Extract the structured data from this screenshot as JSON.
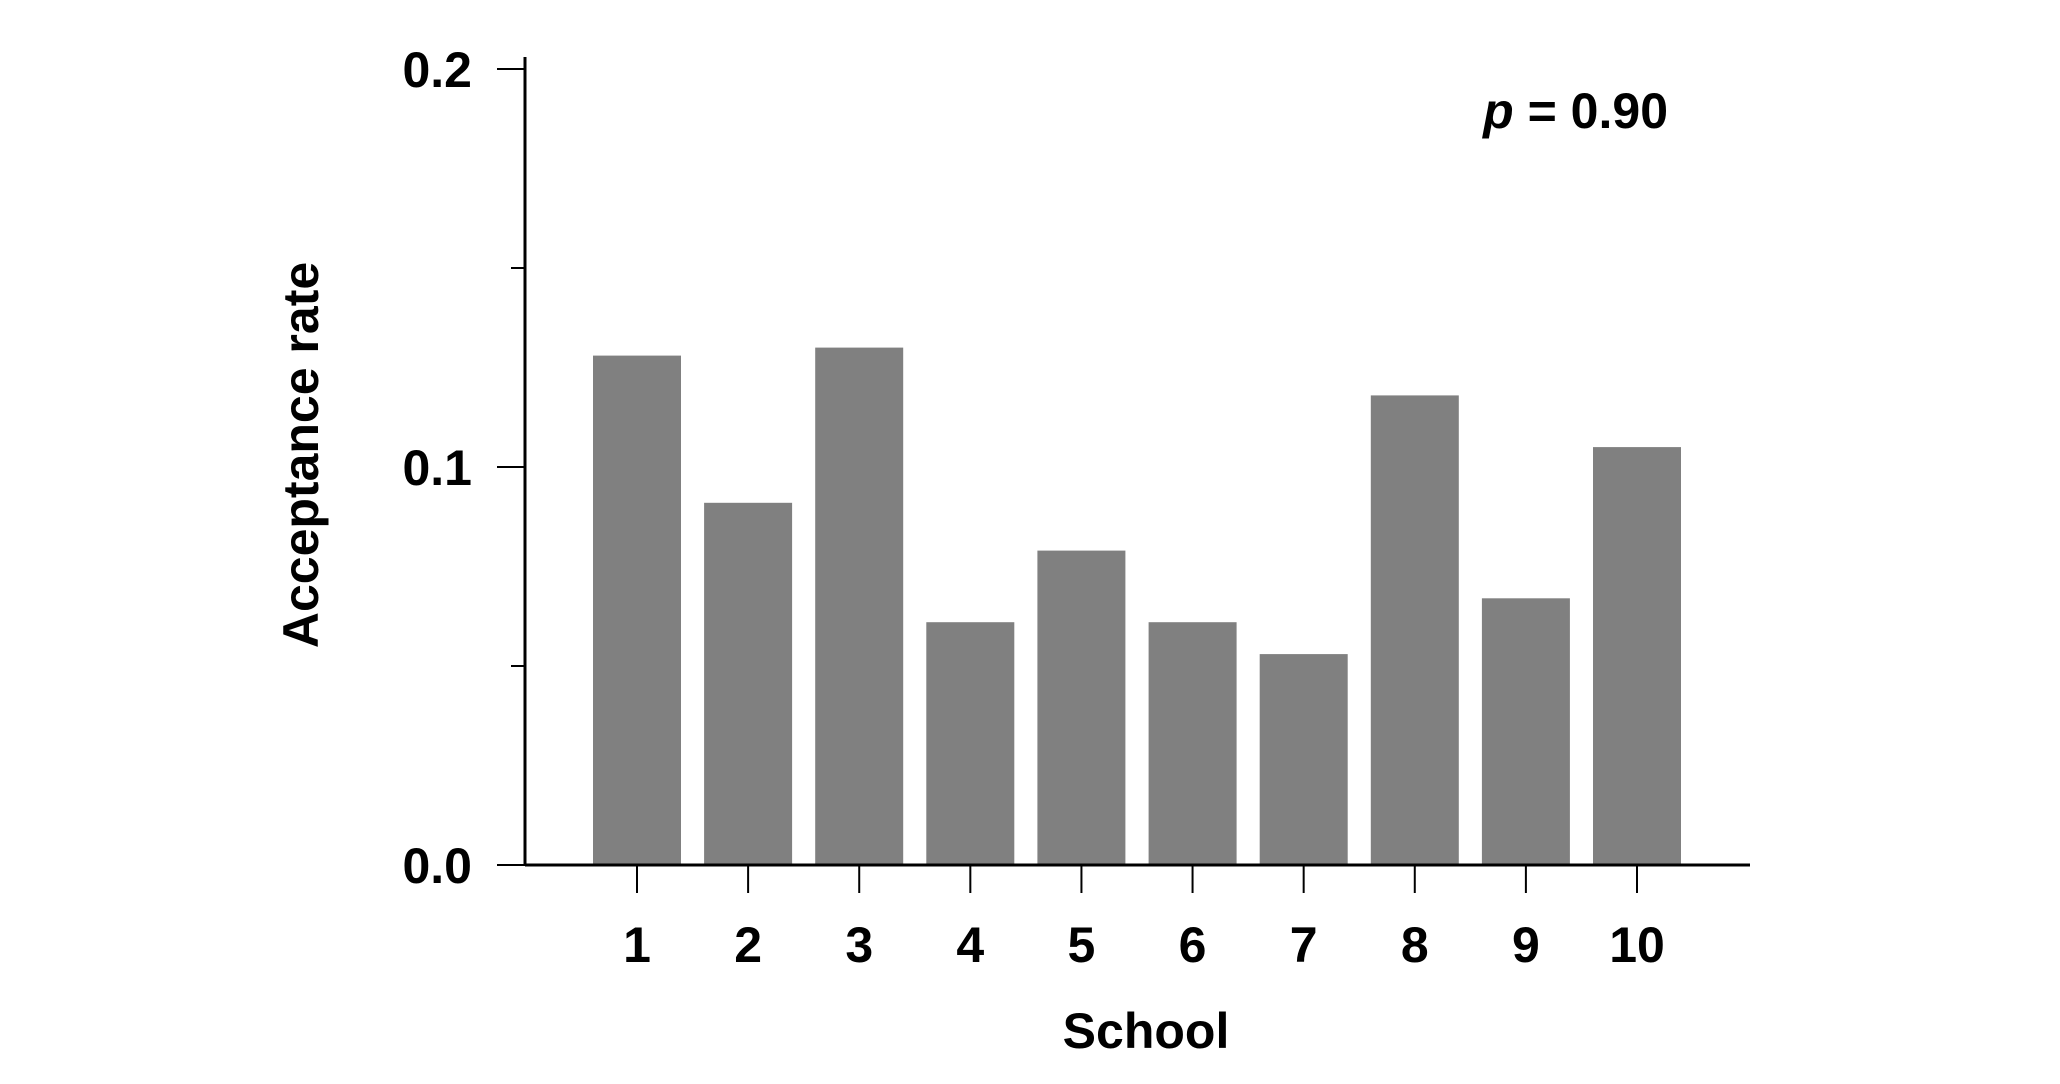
{
  "chart_data": {
    "type": "bar",
    "xlabel": "School",
    "ylabel": "Acceptance rate",
    "categories": [
      "1",
      "2",
      "3",
      "4",
      "5",
      "6",
      "7",
      "8",
      "9",
      "10"
    ],
    "values": [
      0.128,
      0.091,
      0.13,
      0.061,
      0.079,
      0.061,
      0.053,
      0.118,
      0.067,
      0.105
    ],
    "ylim": [
      0.0,
      0.2
    ],
    "yticks": [
      0.0,
      0.1,
      0.2
    ],
    "ytick_labels": [
      "0.0",
      "0.1",
      "0.2"
    ],
    "y_minor_ticks": [
      0.05,
      0.15
    ],
    "annotation": {
      "symbol": "p",
      "text": " = 0.90"
    },
    "bar_color": "#808080",
    "axis_color": "#000000",
    "grid": false,
    "legend": "none"
  }
}
